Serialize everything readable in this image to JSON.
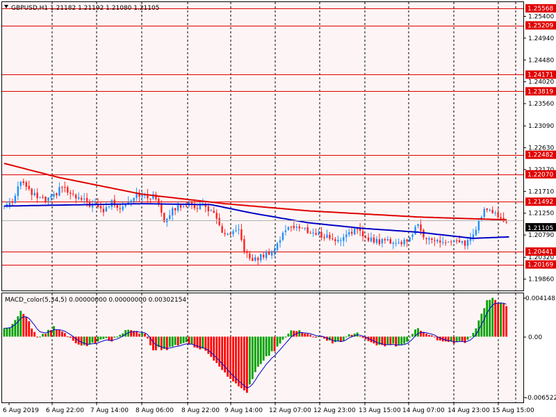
{
  "header": {
    "symbol_label": "GBPUSD,H1",
    "ohlc_label": "1.21182 1.21192 1.21080 1.21105",
    "menu_arrow": "triangle-down-icon"
  },
  "macd_label": "MACD_color(5,34,5) 0.00000000 0.00000000 0.00302154",
  "colors": {
    "background": "#ffffff",
    "chart_background": "#fdf5f5",
    "grid": "#000000",
    "bull": "#1e90ff",
    "bear": "#ff2020",
    "ma_slow": "#e00000",
    "ma_fast": "#0000c8",
    "level": "#e00000",
    "hist_up": "#00a000",
    "hist_down": "#ff0000",
    "signal": "#0000c8"
  },
  "price_axis": {
    "ticks": [
      "1.25400",
      "1.24940",
      "1.24480",
      "1.24020",
      "1.23560",
      "1.23090",
      "1.22630",
      "1.22170",
      "1.21710",
      "1.21250",
      "1.20790",
      "1.20320",
      "1.19860"
    ],
    "levels": [
      "1.25568",
      "1.25209",
      "1.24171",
      "1.23819",
      "1.22482",
      "1.22070",
      "1.21492",
      "1.20441",
      "1.20169"
    ],
    "current": "1.21105"
  },
  "macd_axis": {
    "ticks": [
      "0.0041483",
      "0.00",
      "-0.0065221"
    ]
  },
  "time_axis": {
    "labels": [
      "6 Aug 2019",
      "6 Aug 22:00",
      "7 Aug 14:00",
      "8 Aug 06:00",
      "8 Aug 22:00",
      "9 Aug 14:00",
      "12 Aug 07:00",
      "12 Aug 23:00",
      "13 Aug 15:00",
      "14 Aug 07:00",
      "14 Aug 23:00",
      "15 Aug 15:00"
    ]
  },
  "chart_data": {
    "type": "candlestick",
    "symbol": "GBPUSD",
    "timeframe": "H1",
    "ylim": [
      1.1962,
      1.257
    ],
    "anchors": [
      [
        0,
        1.214
      ],
      [
        3,
        1.2152
      ],
      [
        6,
        1.2196
      ],
      [
        9,
        1.217
      ],
      [
        12,
        1.2158
      ],
      [
        15,
        1.215
      ],
      [
        18,
        1.216
      ],
      [
        21,
        1.2182
      ],
      [
        24,
        1.2163
      ],
      [
        27,
        1.2155
      ],
      [
        30,
        1.2147
      ],
      [
        33,
        1.214
      ],
      [
        36,
        1.213
      ],
      [
        39,
        1.2148
      ],
      [
        42,
        1.2138
      ],
      [
        45,
        1.215
      ],
      [
        48,
        1.2168
      ],
      [
        51,
        1.2158
      ],
      [
        54,
        1.216
      ],
      [
        56,
        1.2148
      ],
      [
        58,
        1.211
      ],
      [
        60,
        1.2125
      ],
      [
        63,
        1.214
      ],
      [
        66,
        1.2145
      ],
      [
        69,
        1.2138
      ],
      [
        72,
        1.2142
      ],
      [
        75,
        1.213
      ],
      [
        78,
        1.21
      ],
      [
        80,
        1.2075
      ],
      [
        82,
        1.208
      ],
      [
        85,
        1.2085
      ],
      [
        87,
        1.205
      ],
      [
        89,
        1.2025
      ],
      [
        92,
        1.203
      ],
      [
        95,
        1.204
      ],
      [
        98,
        1.205
      ],
      [
        101,
        1.208
      ],
      [
        103,
        1.21
      ],
      [
        106,
        1.2095
      ],
      [
        109,
        1.209
      ],
      [
        112,
        1.2083
      ],
      [
        115,
        1.2078
      ],
      [
        118,
        1.2075
      ],
      [
        121,
        1.2065
      ],
      [
        124,
        1.2083
      ],
      [
        127,
        1.209
      ],
      [
        130,
        1.2078
      ],
      [
        133,
        1.207
      ],
      [
        136,
        1.2065
      ],
      [
        139,
        1.2068
      ],
      [
        142,
        1.2062
      ],
      [
        145,
        1.2065
      ],
      [
        148,
        1.2083
      ],
      [
        150,
        1.2098
      ],
      [
        152,
        1.208
      ],
      [
        155,
        1.2068
      ],
      [
        158,
        1.2065
      ],
      [
        161,
        1.2063
      ],
      [
        164,
        1.2062
      ],
      [
        167,
        1.206
      ],
      [
        169,
        1.2073
      ],
      [
        171,
        1.209
      ],
      [
        173,
        1.212
      ],
      [
        175,
        1.2138
      ],
      [
        177,
        1.2125
      ],
      [
        179,
        1.212
      ],
      [
        181,
        1.2113
      ],
      [
        182,
        1.2111
      ]
    ],
    "ma_slow_anchors": [
      [
        0,
        1.223
      ],
      [
        20,
        1.22
      ],
      [
        50,
        1.2165
      ],
      [
        80,
        1.2145
      ],
      [
        110,
        1.213
      ],
      [
        150,
        1.2117
      ],
      [
        182,
        1.2111
      ]
    ],
    "ma_fast_anchors": [
      [
        0,
        1.214
      ],
      [
        20,
        1.2142
      ],
      [
        50,
        1.2145
      ],
      [
        75,
        1.2143
      ],
      [
        90,
        1.2125
      ],
      [
        110,
        1.2105
      ],
      [
        130,
        1.2093
      ],
      [
        150,
        1.2085
      ],
      [
        170,
        1.2072
      ],
      [
        183,
        1.2075
      ]
    ],
    "macd": {
      "ylim": [
        -0.0065221,
        0.0041483
      ],
      "anchors": [
        [
          0,
          0.0008
        ],
        [
          3,
          0.0012
        ],
        [
          6,
          0.0026
        ],
        [
          9,
          0.0016
        ],
        [
          12,
          -0.0002
        ],
        [
          15,
          0.0004
        ],
        [
          18,
          0.001
        ],
        [
          21,
          0.0006
        ],
        [
          24,
          -0.0002
        ],
        [
          27,
          -0.0008
        ],
        [
          30,
          -0.001
        ],
        [
          33,
          -0.0006
        ],
        [
          36,
          -0.0002
        ],
        [
          39,
          -0.0004
        ],
        [
          42,
          0.0002
        ],
        [
          45,
          0.0008
        ],
        [
          48,
          0.0006
        ],
        [
          51,
          0.0002
        ],
        [
          54,
          -0.0014
        ],
        [
          56,
          -0.0012
        ],
        [
          58,
          -0.0014
        ],
        [
          60,
          -0.0012
        ],
        [
          63,
          -0.0008
        ],
        [
          66,
          -0.0006
        ],
        [
          69,
          -0.001
        ],
        [
          72,
          -0.0014
        ],
        [
          75,
          -0.002
        ],
        [
          78,
          -0.0032
        ],
        [
          81,
          -0.0042
        ],
        [
          84,
          -0.005
        ],
        [
          86,
          -0.0056
        ],
        [
          88,
          -0.006
        ],
        [
          90,
          -0.0044
        ],
        [
          92,
          -0.0032
        ],
        [
          95,
          -0.0022
        ],
        [
          98,
          -0.0014
        ],
        [
          101,
          -0.0004
        ],
        [
          104,
          0.0008
        ],
        [
          107,
          0.0006
        ],
        [
          110,
          0.0002
        ],
        [
          113,
          0.0
        ],
        [
          116,
          -0.0002
        ],
        [
          119,
          -0.0006
        ],
        [
          122,
          -0.0006
        ],
        [
          125,
          0.0002
        ],
        [
          128,
          0.0004
        ],
        [
          131,
          -0.0004
        ],
        [
          134,
          -0.0008
        ],
        [
          137,
          -0.001
        ],
        [
          140,
          -0.0008
        ],
        [
          143,
          -0.001
        ],
        [
          146,
          -0.0004
        ],
        [
          148,
          0.0004
        ],
        [
          150,
          0.001
        ],
        [
          152,
          0.0004
        ],
        [
          155,
          0.0
        ],
        [
          158,
          -0.0004
        ],
        [
          161,
          -0.0006
        ],
        [
          164,
          -0.0006
        ],
        [
          167,
          -0.0006
        ],
        [
          169,
          -0.0002
        ],
        [
          171,
          0.0008
        ],
        [
          173,
          0.0024
        ],
        [
          175,
          0.0038
        ],
        [
          177,
          0.004
        ],
        [
          179,
          0.0036
        ],
        [
          181,
          0.0034
        ],
        [
          182,
          0.0032
        ]
      ]
    }
  }
}
